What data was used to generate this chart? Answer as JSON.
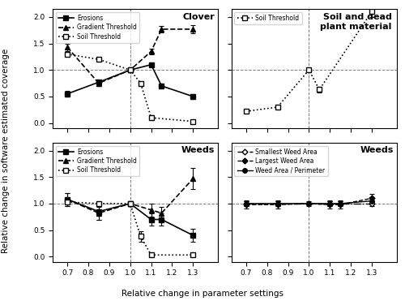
{
  "x_ticks": [
    0.7,
    0.8,
    0.9,
    1.0,
    1.1,
    1.2,
    1.3
  ],
  "xlim": [
    0.63,
    1.42
  ],
  "ylim": [
    -0.1,
    2.15
  ],
  "clover_erosions_x": [
    0.7,
    0.85,
    1.0,
    1.1,
    1.15,
    1.3
  ],
  "clover_erosions_y": [
    0.55,
    0.77,
    1.0,
    1.1,
    0.7,
    0.5
  ],
  "clover_erosions_err": [
    0.05,
    0.04,
    0.02,
    0.04,
    0.05,
    0.05
  ],
  "clover_gradient_x": [
    0.7,
    0.85,
    1.0,
    1.1,
    1.15,
    1.3
  ],
  "clover_gradient_y": [
    1.43,
    0.75,
    1.0,
    1.35,
    1.77,
    1.77
  ],
  "clover_gradient_err": [
    0.07,
    0.05,
    0.02,
    0.05,
    0.06,
    0.07
  ],
  "clover_soil_x": [
    0.7,
    0.85,
    1.0,
    1.05,
    1.1,
    1.3
  ],
  "clover_soil_y": [
    1.3,
    1.2,
    1.0,
    0.75,
    0.1,
    0.03
  ],
  "clover_soil_err": [
    0.04,
    0.03,
    0.02,
    0.04,
    0.04,
    0.02
  ],
  "soil_soil_x": [
    0.7,
    0.85,
    1.0,
    1.05,
    1.3
  ],
  "soil_soil_y": [
    0.22,
    0.3,
    1.0,
    0.63,
    2.1
  ],
  "soil_soil_err": [
    0.02,
    0.03,
    0.02,
    0.05,
    0.1
  ],
  "weeds1_erosions_x": [
    0.7,
    0.85,
    1.0,
    1.1,
    1.15,
    1.3
  ],
  "weeds1_erosions_y": [
    1.08,
    0.85,
    1.0,
    0.7,
    0.7,
    0.4
  ],
  "weeds1_erosions_err": [
    0.12,
    0.15,
    0.04,
    0.12,
    0.12,
    0.12
  ],
  "weeds1_gradient_x": [
    0.7,
    0.85,
    1.0,
    1.1,
    1.15,
    1.3
  ],
  "weeds1_gradient_y": [
    1.08,
    0.82,
    1.0,
    0.88,
    0.82,
    1.47
  ],
  "weeds1_gradient_err": [
    0.12,
    0.12,
    0.04,
    0.12,
    0.12,
    0.2
  ],
  "weeds1_soil_x": [
    0.7,
    0.85,
    1.0,
    1.05,
    1.1,
    1.3
  ],
  "weeds1_soil_y": [
    1.03,
    1.0,
    1.0,
    0.38,
    0.03,
    0.03
  ],
  "weeds1_soil_err": [
    0.05,
    0.03,
    0.02,
    0.1,
    0.02,
    0.02
  ],
  "weeds2_smallest_x": [
    0.7,
    0.85,
    1.0,
    1.1,
    1.15,
    1.3
  ],
  "weeds2_smallest_y": [
    1.0,
    1.0,
    1.0,
    1.0,
    1.0,
    1.0
  ],
  "weeds2_smallest_err": [
    0.05,
    0.05,
    0.02,
    0.05,
    0.05,
    0.05
  ],
  "weeds2_largest_x": [
    0.7,
    0.85,
    1.0,
    1.1,
    1.15,
    1.3
  ],
  "weeds2_largest_y": [
    0.98,
    0.98,
    1.0,
    0.98,
    0.98,
    1.1
  ],
  "weeds2_largest_err": [
    0.08,
    0.08,
    0.04,
    0.08,
    0.08,
    0.08
  ],
  "weeds2_ap_x": [
    0.7,
    0.85,
    1.0,
    1.1,
    1.15,
    1.3
  ],
  "weeds2_ap_y": [
    1.0,
    1.0,
    1.0,
    1.0,
    1.0,
    1.05
  ],
  "weeds2_ap_err": [
    0.05,
    0.05,
    0.02,
    0.05,
    0.05,
    0.05
  ],
  "xlabel": "Relative change in parameter settings",
  "ylabel": "Relative change in software estimated coverage",
  "title_clover": "Clover",
  "title_soil": "Soil and dead\nplant material",
  "title_weeds1": "Weeds",
  "title_weeds2": "Weeds"
}
